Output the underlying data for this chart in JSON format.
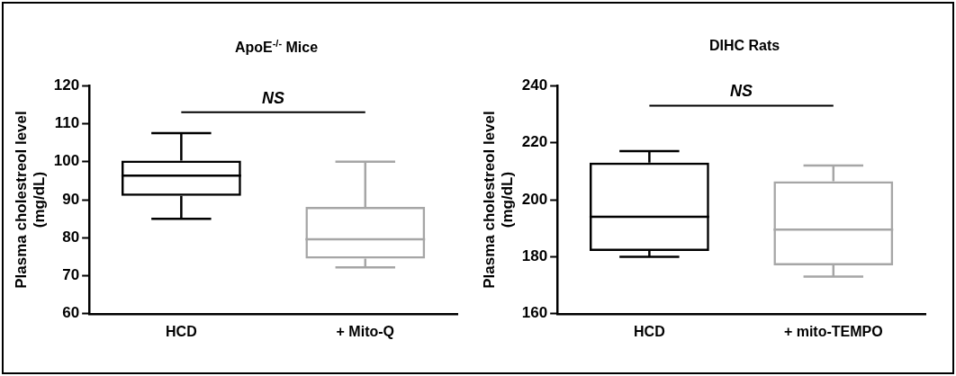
{
  "chart_data": [
    {
      "type": "box",
      "title": "ApoE$^{-/-}$ Mice",
      "ylabel": "Plasma cholestreol level\n(mg/dL)",
      "categories": [
        "HCD",
        "+ Mito-Q"
      ],
      "colors": [
        "#000000",
        "#a6a6a6"
      ],
      "boxes": [
        {
          "low": 85,
          "q1": 91,
          "median": 96.3,
          "q3": 100.3,
          "high": 107.5
        },
        {
          "low": 72.2,
          "q1": 74.5,
          "median": 79.6,
          "q3": 88.1,
          "high": 100
        }
      ],
      "ylim": [
        60,
        120
      ],
      "yticks": [
        60,
        70,
        80,
        90,
        100,
        110,
        120
      ],
      "grid": false,
      "ref_lines": [
        {
          "axis": "y",
          "value": 113,
          "label": "NS",
          "color": "#000000"
        }
      ]
    },
    {
      "type": "box",
      "title": "DIHC Rats",
      "ylabel": "Plasma cholestreol level\n(mg/dL)",
      "categories": [
        "HCD",
        "+ mito-TEMPO"
      ],
      "colors": [
        "#000000",
        "#a6a6a6"
      ],
      "boxes": [
        {
          "low": 180,
          "q1": 182,
          "median": 194,
          "q3": 213,
          "high": 217
        },
        {
          "low": 173,
          "q1": 177,
          "median": 189.5,
          "q3": 206.5,
          "high": 212
        }
      ],
      "ylim": [
        160,
        240
      ],
      "yticks": [
        160,
        180,
        200,
        220,
        240
      ],
      "grid": false,
      "ref_lines": [
        {
          "axis": "y",
          "value": 233,
          "label": "NS",
          "color": "#000000"
        }
      ]
    }
  ]
}
